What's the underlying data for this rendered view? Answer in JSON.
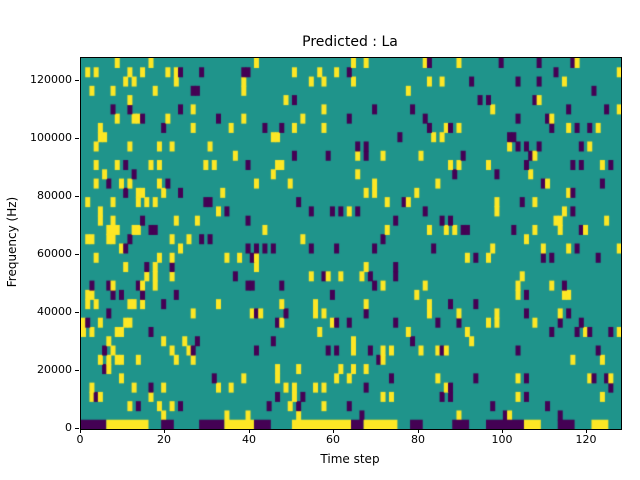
{
  "figure": {
    "title": "Predicted : La",
    "xlabel": "Time step",
    "ylabel": "Frequency (Hz)"
  },
  "chart_data": {
    "type": "heatmap",
    "title": "Predicted : La",
    "xlabel": "Time step",
    "ylabel": "Frequency (Hz)",
    "xlim": [
      0,
      128
    ],
    "ylim": [
      0,
      128000
    ],
    "x_ticks": [
      "0",
      "20",
      "40",
      "60",
      "80",
      "100",
      "120"
    ],
    "x_tick_values": [
      0,
      20,
      40,
      60,
      80,
      100,
      120
    ],
    "y_ticks": [
      "0",
      "20000",
      "40000",
      "60000",
      "80000",
      "100000",
      "120000"
    ],
    "y_tick_values": [
      0,
      20000,
      40000,
      60000,
      80000,
      100000,
      120000
    ],
    "grid": {
      "cols": 128,
      "rows": 40
    },
    "legend": "none",
    "colors": {
      "background": "#1f948b",
      "high": "#fde725",
      "low": "#440154"
    },
    "noise": {
      "seed": 1337,
      "high_density": 0.045,
      "low_density": 0.038,
      "left_high_boost": {
        "col_start": 2,
        "col_end": 22,
        "extra": 0.055
      }
    },
    "bottom_band_runs": [
      [
        0,
        5,
        "low"
      ],
      [
        6,
        15,
        "high"
      ],
      [
        16,
        18,
        "bg"
      ],
      [
        19,
        21,
        "low"
      ],
      [
        22,
        27,
        "bg"
      ],
      [
        28,
        33,
        "low"
      ],
      [
        34,
        40,
        "high"
      ],
      [
        41,
        44,
        "low"
      ],
      [
        45,
        49,
        "bg"
      ],
      [
        50,
        63,
        "high"
      ],
      [
        64,
        66,
        "low"
      ],
      [
        67,
        74,
        "high"
      ],
      [
        75,
        77,
        "bg"
      ],
      [
        78,
        80,
        "low"
      ],
      [
        81,
        87,
        "bg"
      ],
      [
        88,
        91,
        "low"
      ],
      [
        92,
        95,
        "bg"
      ],
      [
        96,
        104,
        "low"
      ],
      [
        105,
        108,
        "high"
      ],
      [
        109,
        112,
        "bg"
      ],
      [
        113,
        116,
        "low"
      ],
      [
        117,
        120,
        "bg"
      ],
      [
        121,
        124,
        "high"
      ],
      [
        125,
        127,
        "bg"
      ]
    ]
  }
}
